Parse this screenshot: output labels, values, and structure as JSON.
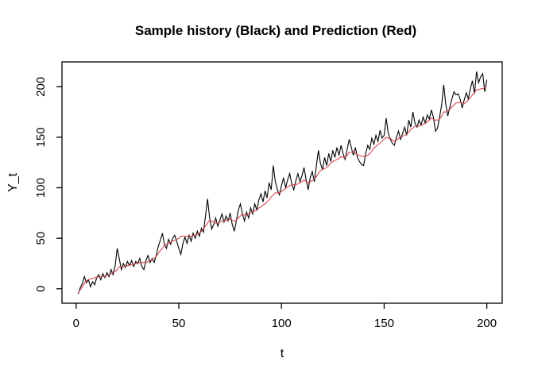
{
  "chart_data": {
    "type": "line",
    "title": "Sample history (Black) and Prediction (Red)",
    "xlabel": "t",
    "ylabel": "Y_t",
    "grid": false,
    "legend": "none (series identified by colors named in title)",
    "x_start": 1,
    "x_step": 1,
    "xlim": [
      -6.9,
      207.5
    ],
    "ylim": [
      -14.3,
      224.6
    ],
    "x_ticks": [
      0,
      50,
      100,
      150,
      200
    ],
    "y_ticks": [
      0,
      50,
      100,
      150,
      200
    ],
    "axis_color": "#000000",
    "series": [
      {
        "name": "Sample history",
        "color": "#000000",
        "values": [
          -5,
          1,
          5,
          12,
          6,
          9,
          2,
          7,
          4,
          11,
          14,
          9,
          15,
          11,
          16,
          12,
          19,
          14,
          23,
          40,
          30,
          19,
          25,
          21,
          27,
          23,
          28,
          22,
          27,
          25,
          30,
          22,
          19,
          28,
          33,
          26,
          30,
          26,
          33,
          42,
          48,
          55,
          44,
          40,
          49,
          44,
          50,
          53,
          47,
          40,
          34,
          45,
          51,
          45,
          53,
          47,
          55,
          50,
          57,
          52,
          60,
          56,
          72,
          89,
          70,
          59,
          64,
          70,
          62,
          68,
          74,
          66,
          72,
          67,
          75,
          64,
          57,
          67,
          78,
          84,
          74,
          67,
          76,
          70,
          80,
          74,
          84,
          78,
          88,
          94,
          86,
          97,
          90,
          105,
          98,
          122,
          106,
          98,
          93,
          102,
          110,
          100,
          108,
          114,
          104,
          98,
          107,
          114,
          106,
          112,
          120,
          108,
          98,
          110,
          116,
          106,
          122,
          137,
          124,
          118,
          130,
          122,
          134,
          126,
          137,
          130,
          140,
          132,
          142,
          134,
          128,
          138,
          148,
          140,
          132,
          140,
          130,
          126,
          123,
          122,
          134,
          142,
          138,
          149,
          143,
          152,
          146,
          157,
          149,
          152,
          169,
          154,
          148,
          144,
          142,
          150,
          156,
          148,
          154,
          160,
          152,
          167,
          160,
          175,
          164,
          160,
          167,
          162,
          170,
          164,
          172,
          168,
          177,
          170,
          156,
          159,
          170,
          182,
          202,
          183,
          171,
          180,
          188,
          195,
          192,
          193,
          188,
          179,
          187,
          194,
          188,
          198,
          206,
          193,
          215,
          204,
          210,
          213,
          195,
          207
        ]
      },
      {
        "name": "Prediction",
        "color": "#d34a52",
        "values": [
          -4,
          -1,
          2,
          5,
          8,
          9,
          10,
          10,
          11,
          11,
          12,
          12,
          12,
          12,
          13,
          14,
          15,
          16,
          17,
          19,
          22,
          22,
          22,
          22,
          23,
          23,
          24,
          24,
          25,
          25,
          26,
          26,
          26,
          26,
          27,
          28,
          29,
          30,
          32,
          35,
          38,
          40,
          43,
          44,
          45,
          46,
          47,
          48,
          49,
          50,
          52,
          52,
          52,
          52,
          52,
          52,
          53,
          53,
          54,
          55,
          57,
          59,
          62,
          65,
          68,
          67,
          66,
          65,
          65,
          66,
          67,
          67,
          68,
          68,
          69,
          68,
          67,
          68,
          70,
          72,
          74,
          73,
          73,
          74,
          75,
          76,
          77,
          78,
          80,
          81,
          83,
          84,
          86,
          88,
          91,
          93,
          95,
          95,
          95,
          96,
          98,
          99,
          101,
          102,
          103,
          103,
          103,
          104,
          105,
          106,
          108,
          106,
          105,
          106,
          107,
          109,
          111,
          114,
          117,
          118,
          119,
          120,
          122,
          124,
          126,
          127,
          128,
          129,
          131,
          130,
          130,
          132,
          135,
          135,
          136,
          134,
          133,
          132,
          131,
          131,
          131,
          132,
          134,
          136,
          139,
          141,
          143,
          144,
          146,
          148,
          150,
          149,
          149,
          147,
          146,
          147,
          149,
          150,
          151,
          152,
          153,
          155,
          158,
          159,
          161,
          161,
          161,
          162,
          163,
          164,
          165,
          167,
          169,
          168,
          167,
          167,
          168,
          171,
          175,
          175,
          176,
          178,
          180,
          182,
          184,
          184,
          185,
          184,
          183,
          185,
          187,
          189,
          192,
          194,
          197,
          197,
          198,
          198,
          199,
          201
        ]
      }
    ]
  }
}
